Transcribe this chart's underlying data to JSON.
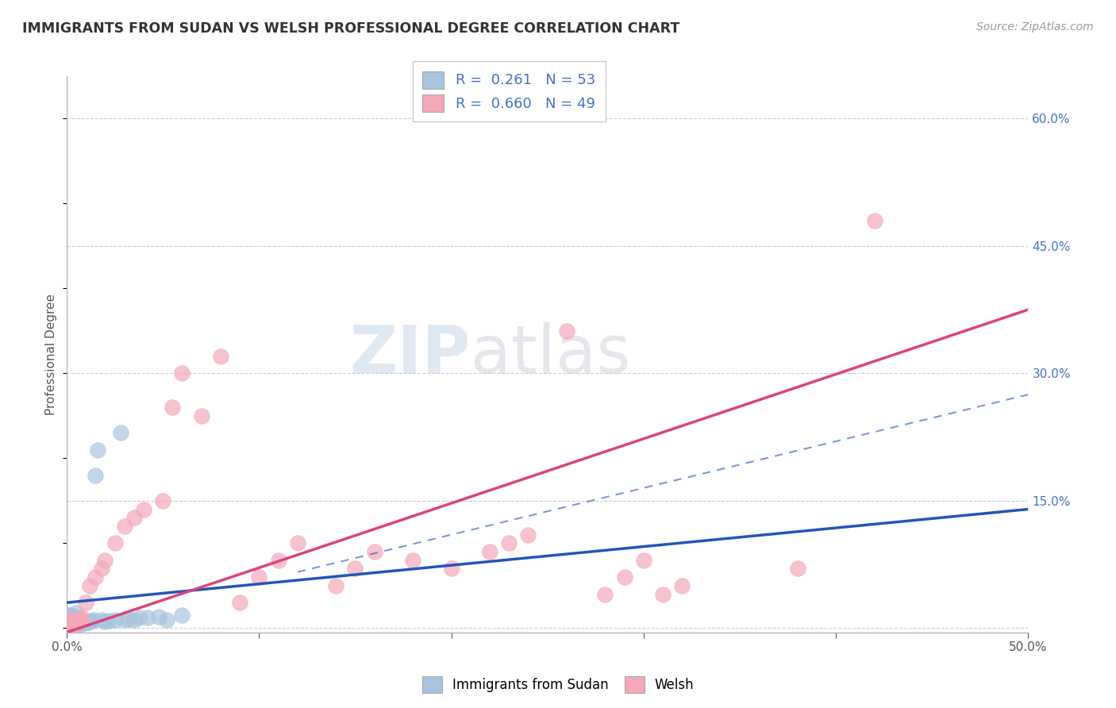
{
  "title": "IMMIGRANTS FROM SUDAN VS WELSH PROFESSIONAL DEGREE CORRELATION CHART",
  "source": "Source: ZipAtlas.com",
  "ylabel": "Professional Degree",
  "xlim": [
    0.0,
    0.5
  ],
  "ylim": [
    -0.005,
    0.65
  ],
  "xticks": [
    0.0,
    0.1,
    0.2,
    0.3,
    0.4,
    0.5
  ],
  "xticklabels": [
    "0.0%",
    "",
    "",
    "",
    "",
    "50.0%"
  ],
  "yticks": [
    0.0,
    0.15,
    0.3,
    0.45,
    0.6
  ],
  "yticklabels": [
    "",
    "15.0%",
    "30.0%",
    "45.0%",
    "60.0%"
  ],
  "sudan_R": 0.261,
  "sudan_N": 53,
  "welsh_R": 0.66,
  "welsh_N": 49,
  "sudan_color": "#a8c4e0",
  "welsh_color": "#f4a8b8",
  "sudan_line_color": "#2255bb",
  "welsh_line_color": "#dd4477",
  "legend_label_sudan": "Immigrants from Sudan",
  "legend_label_welsh": "Welsh",
  "watermark_zip": "ZIP",
  "watermark_atlas": "atlas",
  "background_color": "#ffffff",
  "grid_color": "#cccccc",
  "title_color": "#333333",
  "sudan_scatter_x": [
    0.001,
    0.001,
    0.001,
    0.001,
    0.001,
    0.002,
    0.002,
    0.002,
    0.002,
    0.002,
    0.002,
    0.003,
    0.003,
    0.003,
    0.003,
    0.003,
    0.004,
    0.004,
    0.004,
    0.004,
    0.005,
    0.005,
    0.005,
    0.005,
    0.006,
    0.006,
    0.006,
    0.007,
    0.007,
    0.008,
    0.008,
    0.009,
    0.01,
    0.01,
    0.011,
    0.012,
    0.013,
    0.014,
    0.015,
    0.016,
    0.018,
    0.02,
    0.022,
    0.025,
    0.028,
    0.03,
    0.032,
    0.035,
    0.038,
    0.042,
    0.048,
    0.052,
    0.06
  ],
  "sudan_scatter_y": [
    0.005,
    0.008,
    0.01,
    0.012,
    0.015,
    0.003,
    0.005,
    0.007,
    0.01,
    0.012,
    0.015,
    0.004,
    0.006,
    0.008,
    0.01,
    0.013,
    0.005,
    0.007,
    0.009,
    0.012,
    0.004,
    0.006,
    0.008,
    0.018,
    0.005,
    0.007,
    0.01,
    0.006,
    0.008,
    0.005,
    0.007,
    0.006,
    0.007,
    0.008,
    0.007,
    0.008,
    0.009,
    0.01,
    0.18,
    0.21,
    0.01,
    0.008,
    0.009,
    0.01,
    0.23,
    0.01,
    0.011,
    0.01,
    0.012,
    0.012,
    0.013,
    0.01,
    0.015
  ],
  "welsh_scatter_x": [
    0.001,
    0.001,
    0.001,
    0.002,
    0.002,
    0.002,
    0.003,
    0.003,
    0.004,
    0.004,
    0.005,
    0.005,
    0.006,
    0.007,
    0.008,
    0.01,
    0.012,
    0.015,
    0.018,
    0.02,
    0.025,
    0.03,
    0.035,
    0.04,
    0.05,
    0.055,
    0.06,
    0.07,
    0.08,
    0.09,
    0.1,
    0.11,
    0.12,
    0.14,
    0.15,
    0.16,
    0.18,
    0.2,
    0.22,
    0.23,
    0.24,
    0.26,
    0.28,
    0.29,
    0.3,
    0.31,
    0.32,
    0.38,
    0.42
  ],
  "welsh_scatter_y": [
    0.003,
    0.005,
    0.008,
    0.004,
    0.006,
    0.01,
    0.005,
    0.008,
    0.006,
    0.009,
    0.005,
    0.01,
    0.008,
    0.01,
    0.012,
    0.03,
    0.05,
    0.06,
    0.07,
    0.08,
    0.1,
    0.12,
    0.13,
    0.14,
    0.15,
    0.26,
    0.3,
    0.25,
    0.32,
    0.03,
    0.06,
    0.08,
    0.1,
    0.05,
    0.07,
    0.09,
    0.08,
    0.07,
    0.09,
    0.1,
    0.11,
    0.35,
    0.04,
    0.06,
    0.08,
    0.04,
    0.05,
    0.07,
    0.48
  ]
}
